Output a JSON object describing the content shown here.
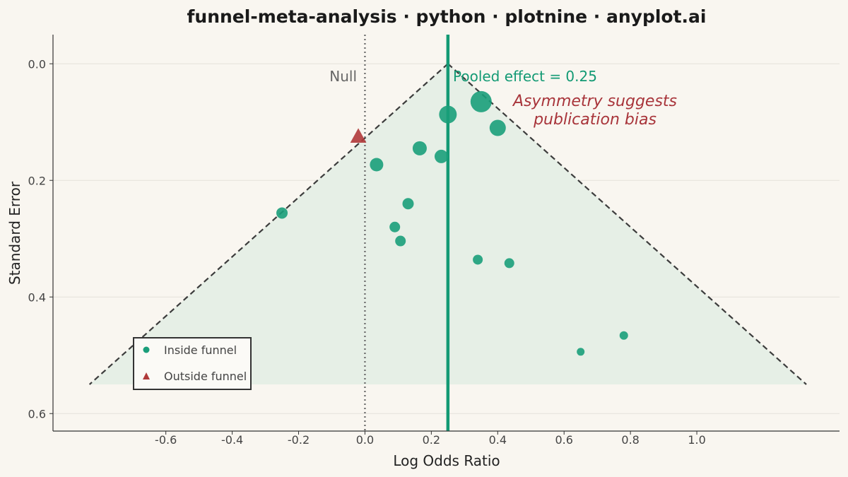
{
  "chart_data": {
    "type": "scatter",
    "title": "funnel-meta-analysis · python · plotnine · anyplot.ai",
    "xlabel": "Log Odds Ratio",
    "ylabel": "Standard Error",
    "xlim": [
      -0.94,
      1.43
    ],
    "ylim": [
      0.63,
      -0.05
    ],
    "y_reversed": true,
    "x_ticks": [
      -0.6,
      -0.4,
      -0.2,
      0.0,
      0.2,
      0.4,
      0.6,
      0.8,
      1.0
    ],
    "x_tick_labels": [
      "-0.6",
      "-0.4",
      "-0.2",
      "0.0",
      "0.2",
      "0.4",
      "0.6",
      "0.8",
      "1.0"
    ],
    "y_ticks": [
      0.0,
      0.2,
      0.4,
      0.6
    ],
    "y_tick_labels": [
      "0.0",
      "0.2",
      "0.4",
      "0.6"
    ],
    "grid": "horizontal",
    "pooled_effect": 0.25,
    "null_value": 0.0,
    "funnel": {
      "apex": [
        0.25,
        0.0
      ],
      "left": [
        -0.83,
        0.55
      ],
      "right": [
        1.33,
        0.55
      ]
    },
    "series": [
      {
        "name": "Inside funnel",
        "marker": "circle",
        "color": "#1a9e7a",
        "points": [
          {
            "x": 0.35,
            "y": 0.065,
            "size": 15
          },
          {
            "x": 0.25,
            "y": 0.087,
            "size": 12.5
          },
          {
            "x": 0.4,
            "y": 0.11,
            "size": 11.5
          },
          {
            "x": 0.165,
            "y": 0.145,
            "size": 10
          },
          {
            "x": 0.23,
            "y": 0.159,
            "size": 9.5
          },
          {
            "x": 0.035,
            "y": 0.173,
            "size": 9.5
          },
          {
            "x": 0.13,
            "y": 0.24,
            "size": 8
          },
          {
            "x": -0.25,
            "y": 0.256,
            "size": 8
          },
          {
            "x": 0.09,
            "y": 0.28,
            "size": 7.5
          },
          {
            "x": 0.107,
            "y": 0.304,
            "size": 7.5
          },
          {
            "x": 0.34,
            "y": 0.336,
            "size": 7
          },
          {
            "x": 0.435,
            "y": 0.342,
            "size": 7
          },
          {
            "x": 0.78,
            "y": 0.466,
            "size": 6
          },
          {
            "x": 0.65,
            "y": 0.494,
            "size": 5.5
          }
        ]
      },
      {
        "name": "Outside funnel",
        "marker": "triangle",
        "color": "#b03a3a",
        "points": [
          {
            "x": -0.02,
            "y": 0.125,
            "size": 12
          }
        ]
      }
    ],
    "annotations": {
      "null_label": "Null",
      "pooled_label": "Pooled effect = 0.25",
      "bias_line1": "Asymmetry suggests",
      "bias_line2": "publication bias"
    },
    "legend_position": "bottom-left",
    "legend": [
      {
        "label": "Inside funnel",
        "marker": "circle"
      },
      {
        "label": "Outside funnel",
        "marker": "triangle"
      }
    ],
    "colors": {
      "background": "#f9f6f0",
      "funnel_fill": "#e6efe6",
      "funnel_line": "#3c3c3c",
      "pooled_line": "#139a74",
      "null_line": "#666666",
      "bias_text": "#a8343a",
      "grid": "#e4e1da"
    }
  }
}
